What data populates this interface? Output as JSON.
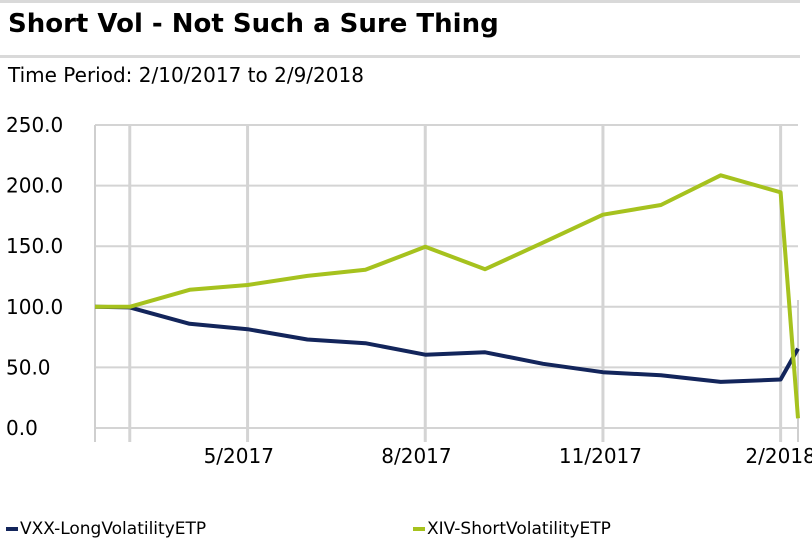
{
  "title": "Short Vol - Not Such a Sure Thing",
  "subtitle": "Time Period: 2/10/2017 to 2/9/2018",
  "colors": {
    "vxx": "#13255b",
    "xiv": "#a6c21e",
    "grid": "#d4d4d4",
    "axis": "#cfcfcf"
  },
  "chart_data": {
    "type": "line",
    "title": "Short Vol - Not Such a Sure Thing",
    "xlabel": "",
    "ylabel": "",
    "ylim": [
      0,
      250
    ],
    "yticks": [
      "0.0",
      "50.0",
      "100.0",
      "150.0",
      "200.0",
      "250.0"
    ],
    "xticks": [
      "5/2017",
      "8/2017",
      "11/2017",
      "2/2018"
    ],
    "grid": true,
    "legend_position": "bottom",
    "x": [
      "2017-02-10",
      "2017-02-28",
      "2017-03-31",
      "2017-04-30",
      "2017-05-31",
      "2017-06-30",
      "2017-07-31",
      "2017-08-31",
      "2017-09-30",
      "2017-10-31",
      "2017-11-30",
      "2017-12-31",
      "2018-01-31",
      "2018-02-09"
    ],
    "series": [
      {
        "name": "VXX-LongVolatilityETP",
        "color": "#13255b",
        "values": [
          100,
          99.5,
          86,
          81.5,
          73,
          70,
          60.5,
          62.5,
          53,
          46,
          43.5,
          38,
          40,
          65.5
        ]
      },
      {
        "name": "XIV-ShortVolatilityETP",
        "color": "#a6c21e",
        "values": [
          100,
          100,
          114,
          118,
          125.5,
          130.5,
          149.5,
          131,
          153,
          176,
          184,
          208.5,
          194.5,
          8
        ]
      }
    ]
  }
}
